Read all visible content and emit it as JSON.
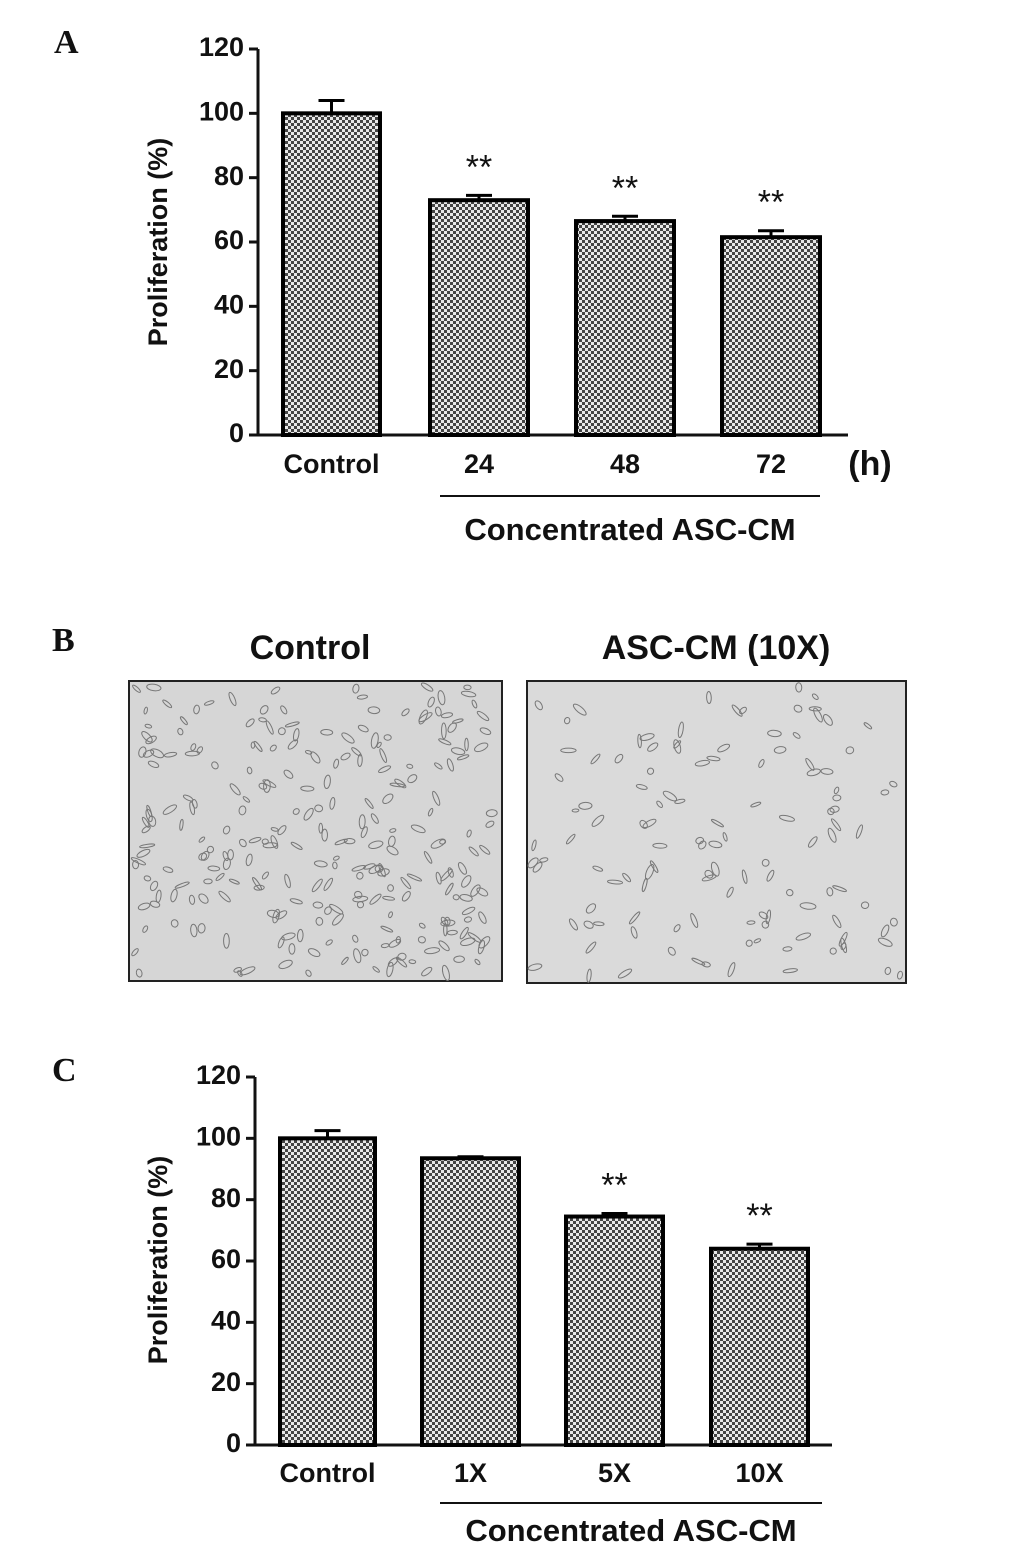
{
  "panels": [
    "A",
    "B",
    "C"
  ],
  "images": [
    {
      "title": "Control"
    },
    {
      "title": "ASC-CM (10X)"
    }
  ],
  "chart_data": [
    {
      "type": "bar",
      "ylabel": "Proliferation (%)",
      "categories": [
        "Control",
        "24",
        "48",
        "72"
      ],
      "values": [
        100,
        73,
        66.5,
        61.5
      ],
      "errors": [
        4,
        1.5,
        1.5,
        2
      ],
      "significance": [
        null,
        "**",
        "**",
        "**"
      ],
      "x_unit": "(h)",
      "group_label": "Concentrated ASC-CM",
      "ylim": [
        0,
        120
      ],
      "yticks": [
        0,
        20,
        40,
        60,
        80,
        100,
        120
      ],
      "color": "#000000"
    },
    {
      "type": "bar",
      "ylabel": "Proliferation (%)",
      "categories": [
        "Control",
        "1X",
        "5X",
        "10X"
      ],
      "values": [
        100,
        93.5,
        74.5,
        64
      ],
      "errors": [
        2.5,
        0.5,
        1,
        1.5
      ],
      "significance": [
        null,
        null,
        "**",
        "**"
      ],
      "group_label": "Concentrated ASC-CM",
      "ylim": [
        0,
        120
      ],
      "yticks": [
        0,
        20,
        40,
        60,
        80,
        100,
        120
      ],
      "color": "#000000"
    }
  ]
}
